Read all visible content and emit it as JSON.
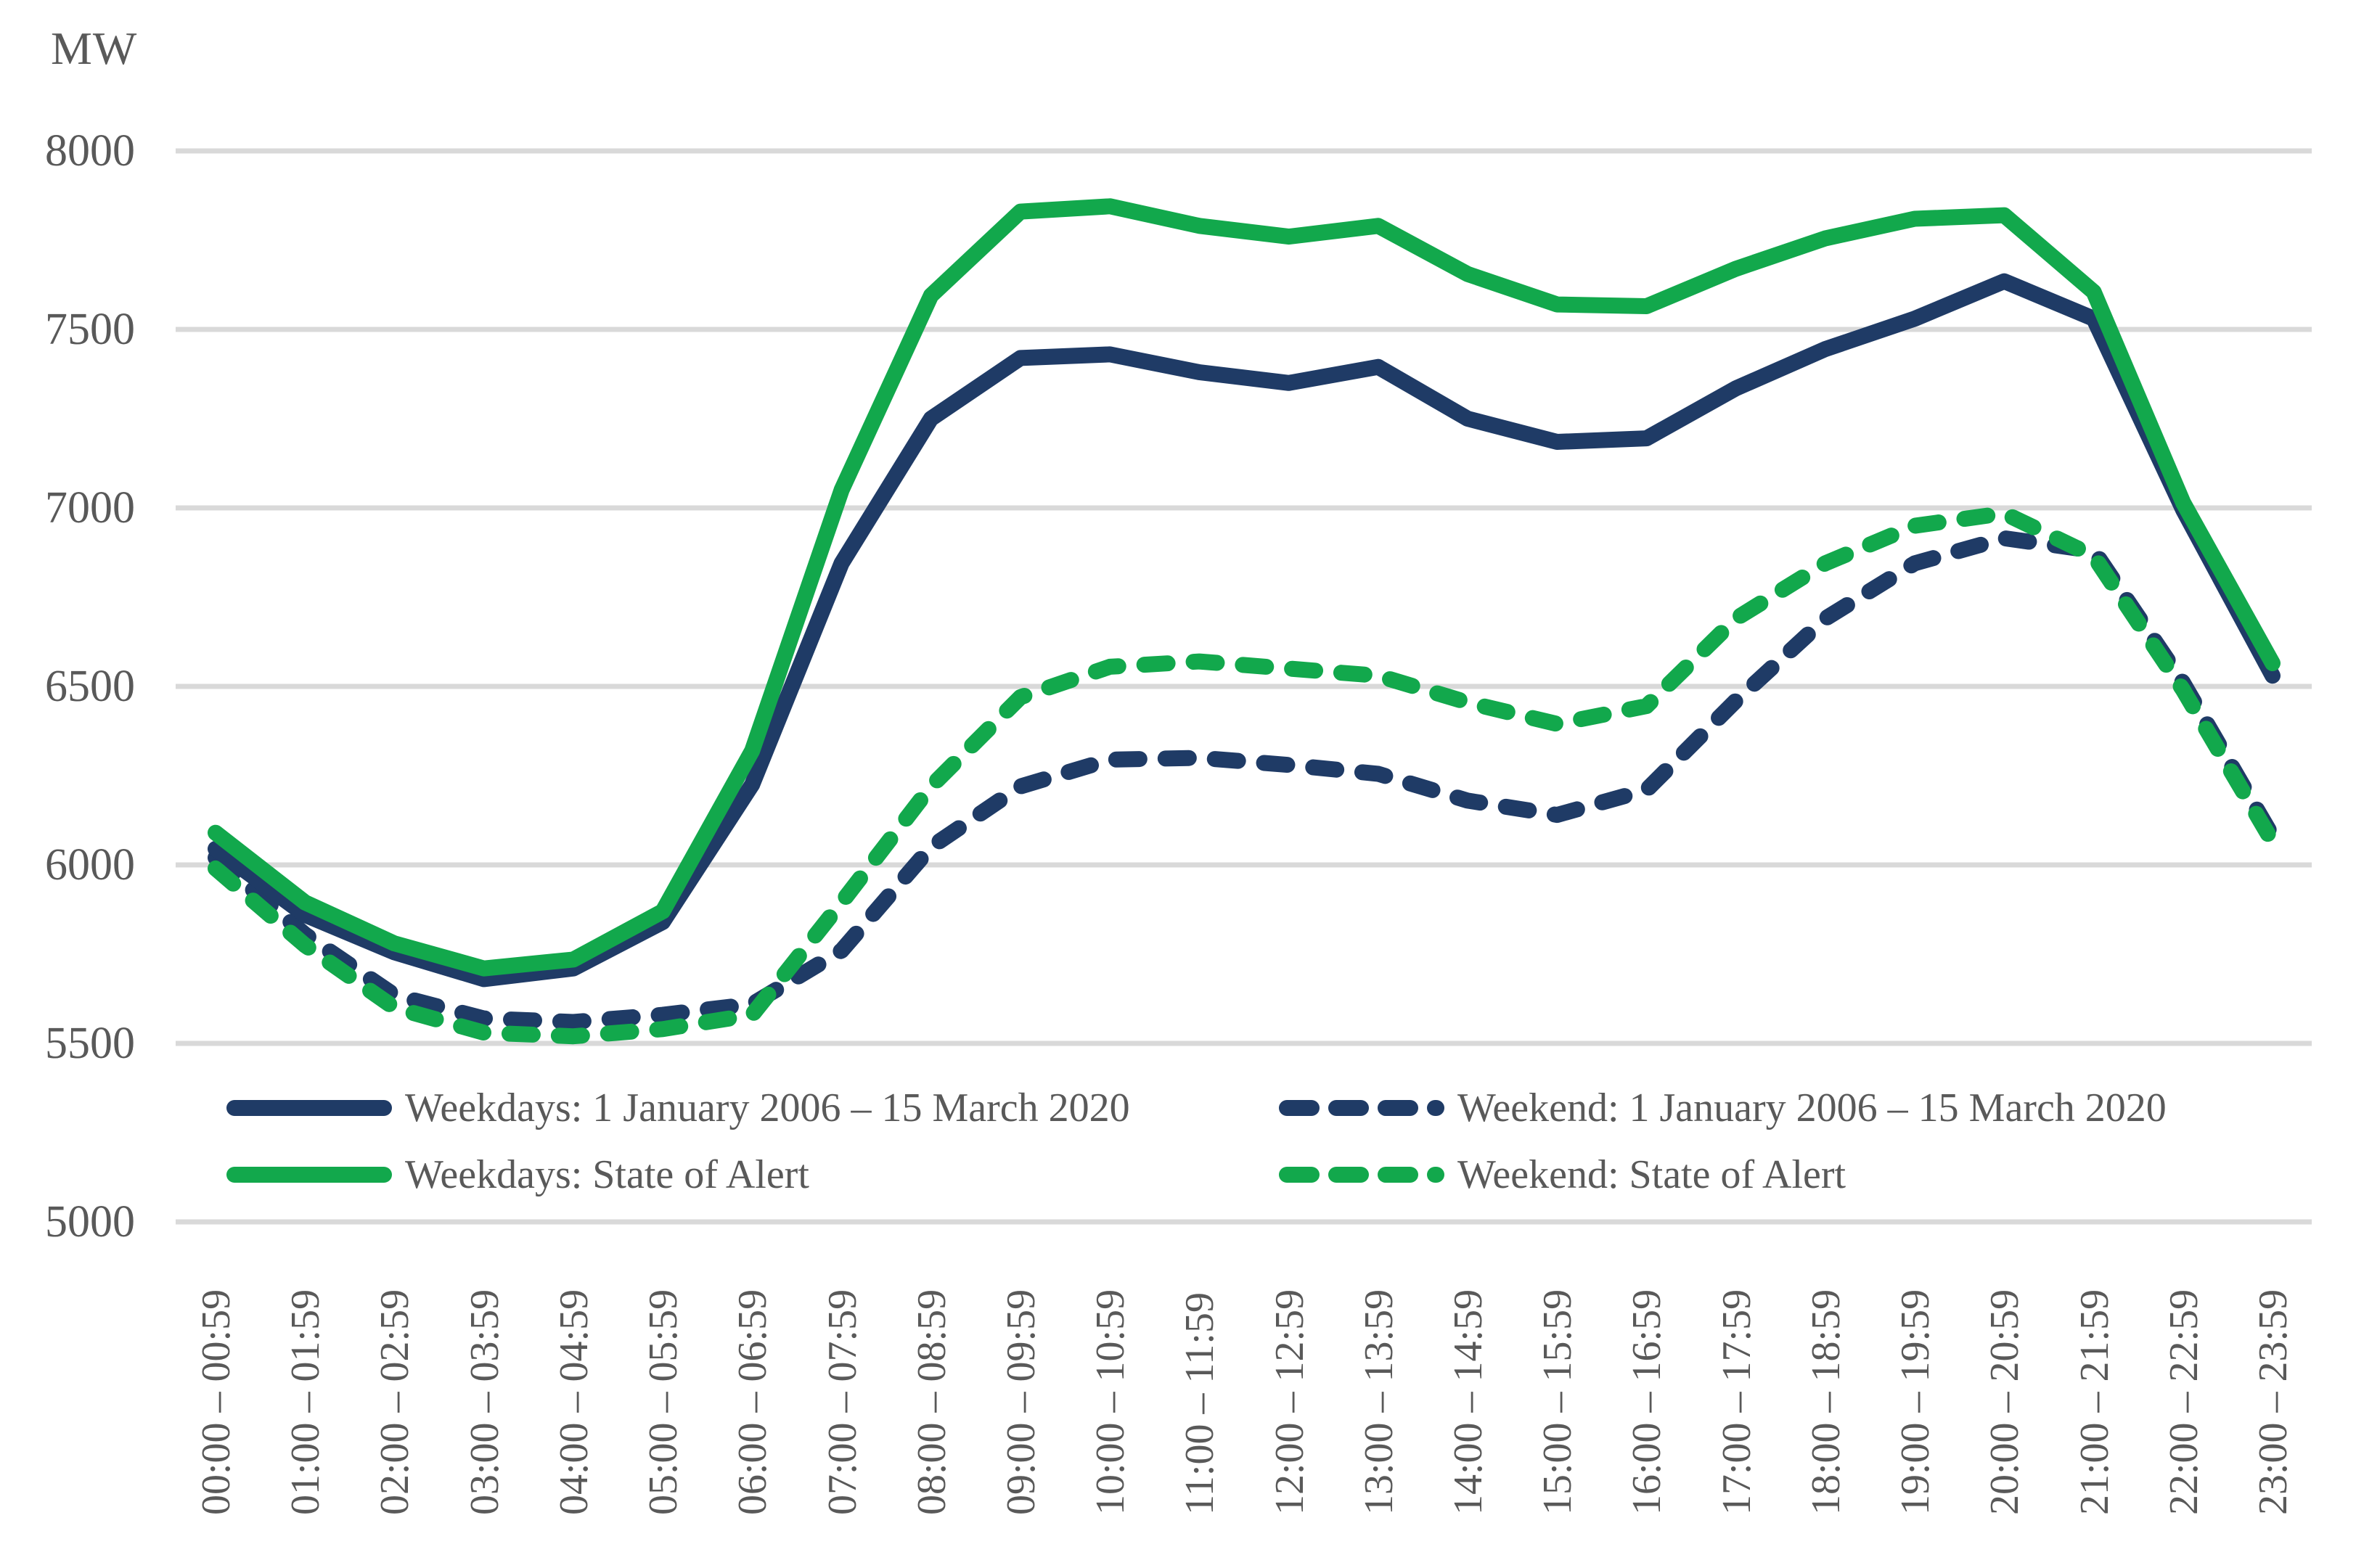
{
  "chart_data": {
    "type": "line",
    "y_axis_title": "MW",
    "ylim": [
      5000,
      8000
    ],
    "y_ticks": [
      8000,
      7500,
      7000,
      6500,
      6000,
      5500,
      5000
    ],
    "grid": "horizontal",
    "grid_color": "#D9D9D9",
    "text_color": "#595959",
    "legend_position": "bottom-inside",
    "categories": [
      "00:00 – 00:59",
      "01:00 – 01:59",
      "02:00 – 02:59",
      "03:00 – 03:59",
      "04:00 – 04:59",
      "05:00 – 05:59",
      "06:00 – 06:59",
      "07:00 – 07:59",
      "08:00 – 08:59",
      "09:00 – 09:59",
      "10:00 – 10:59",
      "11:00 – 11:59",
      "12:00 – 12:59",
      "13:00 – 13:59",
      "14:00 – 14:59",
      "15:00 – 15:59",
      "16:00 – 16:59",
      "17:00 – 17:59",
      "18:00 – 18:59",
      "19:00 – 19:59",
      "20:00 – 20:59",
      "21:00 – 21:59",
      "22:00 – 22:59",
      "23:00 – 23:59"
    ],
    "series": [
      {
        "name": "Weekdays: 1 January 2006 – 15 March 2020",
        "color": "#1F3B66",
        "line_style": "solid",
        "values": [
          6045,
          5860,
          5755,
          5680,
          5710,
          5840,
          6225,
          6845,
          7250,
          7420,
          7430,
          7380,
          7350,
          7395,
          7250,
          7185,
          7195,
          7335,
          7445,
          7530,
          7635,
          7530,
          6995,
          6530
        ]
      },
      {
        "name": "Weekend: 1 January 2006 – 15 March 2020",
        "color": "#1F3B66",
        "line_style": "dashed",
        "values": [
          6020,
          5805,
          5635,
          5570,
          5560,
          5580,
          5610,
          5760,
          6050,
          6220,
          6295,
          6300,
          6280,
          6255,
          6180,
          6140,
          6210,
          6460,
          6690,
          6845,
          6915,
          6880,
          6510,
          6080
        ]
      },
      {
        "name": "Weekdays: State of Alert",
        "color": "#12A84C",
        "line_style": "solid",
        "values": [
          6090,
          5895,
          5780,
          5710,
          5735,
          5870,
          6320,
          7050,
          7595,
          7830,
          7845,
          7790,
          7760,
          7790,
          7655,
          7570,
          7565,
          7670,
          7755,
          7810,
          7820,
          7605,
          7015,
          6565
        ]
      },
      {
        "name": "Weekend: State of Alert",
        "color": "#12A84C",
        "line_style": "dashed",
        "values": [
          5990,
          5775,
          5600,
          5530,
          5520,
          5540,
          5580,
          5895,
          6220,
          6470,
          6555,
          6570,
          6550,
          6530,
          6455,
          6395,
          6445,
          6690,
          6845,
          6950,
          6985,
          6865,
          6490,
          6065
        ]
      }
    ]
  }
}
